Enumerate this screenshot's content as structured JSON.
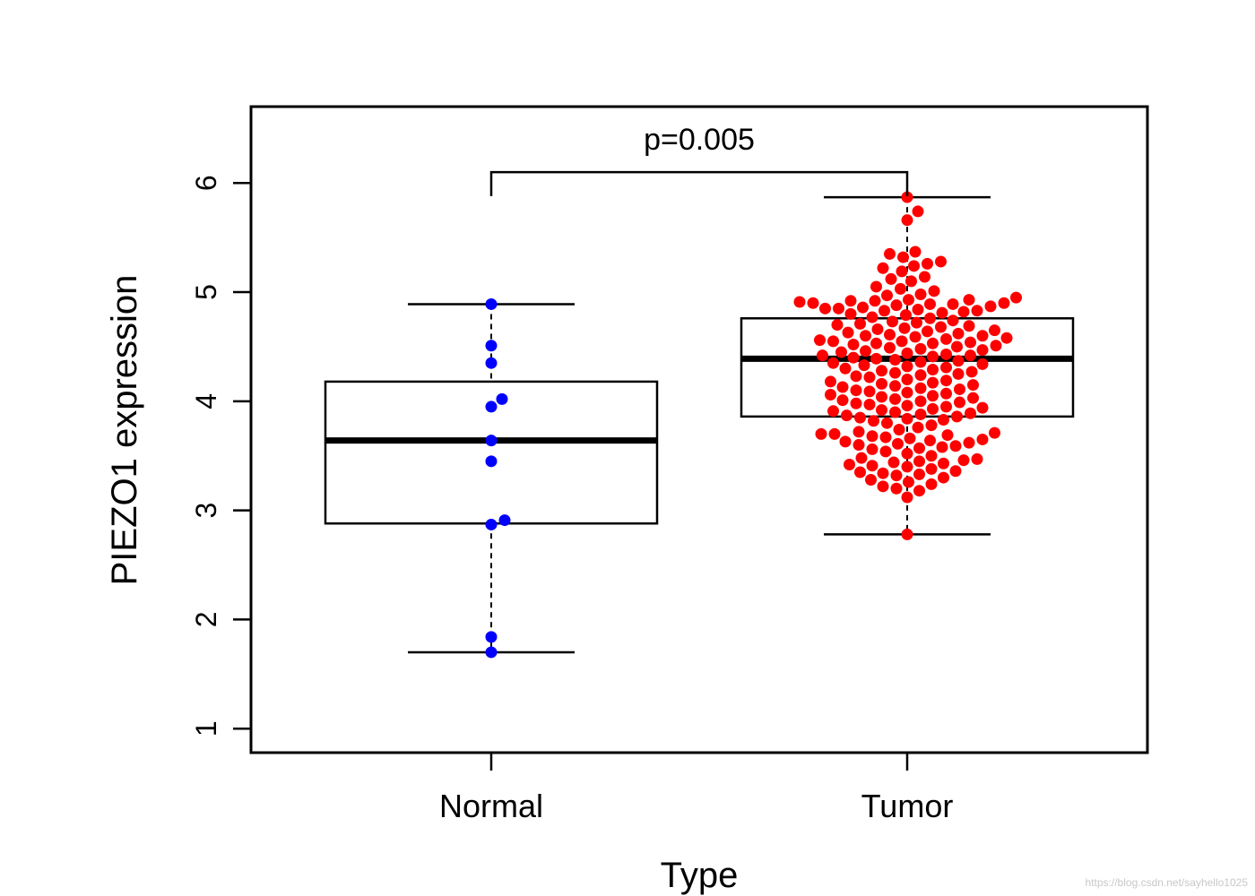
{
  "chart_data": {
    "type": "box",
    "xlabel": "Type",
    "ylabel": "PIEZO1 expression",
    "ylim": [
      0.78,
      6.7
    ],
    "yticks": [
      1,
      2,
      3,
      4,
      5,
      6
    ],
    "annotation": {
      "text": "p=0.005",
      "bracket_y": 6.1,
      "bracket_drop": 5.88
    },
    "categories": [
      "Normal",
      "Tumor"
    ],
    "groups": [
      {
        "name": "Normal",
        "color": "#0000ff",
        "box": {
          "min": 1.7,
          "q1": 2.88,
          "median": 3.64,
          "q3": 4.18,
          "max": 4.89
        },
        "points": [
          4.89,
          4.51,
          4.35,
          4.02,
          3.95,
          3.64,
          3.45,
          2.91,
          2.87,
          1.84,
          1.7
        ]
      },
      {
        "name": "Tumor",
        "color": "#ff0000",
        "box": {
          "min": 2.78,
          "q1": 3.86,
          "median": 4.39,
          "q3": 4.76,
          "max": 5.87
        },
        "points": [
          5.87,
          5.74,
          5.66,
          5.37,
          5.35,
          5.32,
          5.28,
          5.26,
          5.24,
          5.22,
          5.19,
          5.14,
          5.12,
          5.1,
          5.05,
          5.03,
          5.01,
          4.98,
          4.97,
          4.95,
          4.93,
          4.93,
          4.92,
          4.92,
          4.91,
          4.9,
          4.9,
          4.89,
          4.89,
          4.88,
          4.87,
          4.86,
          4.85,
          4.85,
          4.84,
          4.83,
          4.83,
          4.82,
          4.81,
          4.8,
          4.79,
          4.77,
          4.76,
          4.74,
          4.73,
          4.72,
          4.71,
          4.7,
          4.69,
          4.68,
          4.67,
          4.66,
          4.65,
          4.64,
          4.63,
          4.62,
          4.61,
          4.6,
          4.6,
          4.59,
          4.58,
          4.57,
          4.56,
          4.55,
          4.55,
          4.54,
          4.53,
          4.53,
          4.52,
          4.51,
          4.5,
          4.49,
          4.48,
          4.47,
          4.46,
          4.45,
          4.44,
          4.43,
          4.42,
          4.42,
          4.41,
          4.4,
          4.39,
          4.38,
          4.37,
          4.36,
          4.35,
          4.34,
          4.33,
          4.32,
          4.31,
          4.3,
          4.29,
          4.28,
          4.27,
          4.26,
          4.25,
          4.24,
          4.23,
          4.22,
          4.2,
          4.19,
          4.18,
          4.17,
          4.16,
          4.15,
          4.14,
          4.13,
          4.12,
          4.11,
          4.1,
          4.09,
          4.08,
          4.07,
          4.06,
          4.05,
          4.04,
          4.03,
          4.02,
          4.01,
          4.0,
          3.99,
          3.98,
          3.97,
          3.96,
          3.95,
          3.94,
          3.93,
          3.92,
          3.91,
          3.9,
          3.89,
          3.88,
          3.87,
          3.86,
          3.85,
          3.84,
          3.83,
          3.82,
          3.8,
          3.78,
          3.76,
          3.74,
          3.72,
          3.71,
          3.7,
          3.7,
          3.69,
          3.68,
          3.67,
          3.66,
          3.65,
          3.64,
          3.63,
          3.62,
          3.61,
          3.6,
          3.59,
          3.58,
          3.57,
          3.56,
          3.54,
          3.52,
          3.5,
          3.48,
          3.47,
          3.46,
          3.45,
          3.44,
          3.43,
          3.42,
          3.41,
          3.4,
          3.38,
          3.36,
          3.35,
          3.34,
          3.33,
          3.32,
          3.3,
          3.28,
          3.26,
          3.24,
          3.22,
          3.2,
          3.18,
          3.12,
          2.78
        ]
      }
    ]
  },
  "watermark": "https://blog.csdn.net/sayhello1025"
}
